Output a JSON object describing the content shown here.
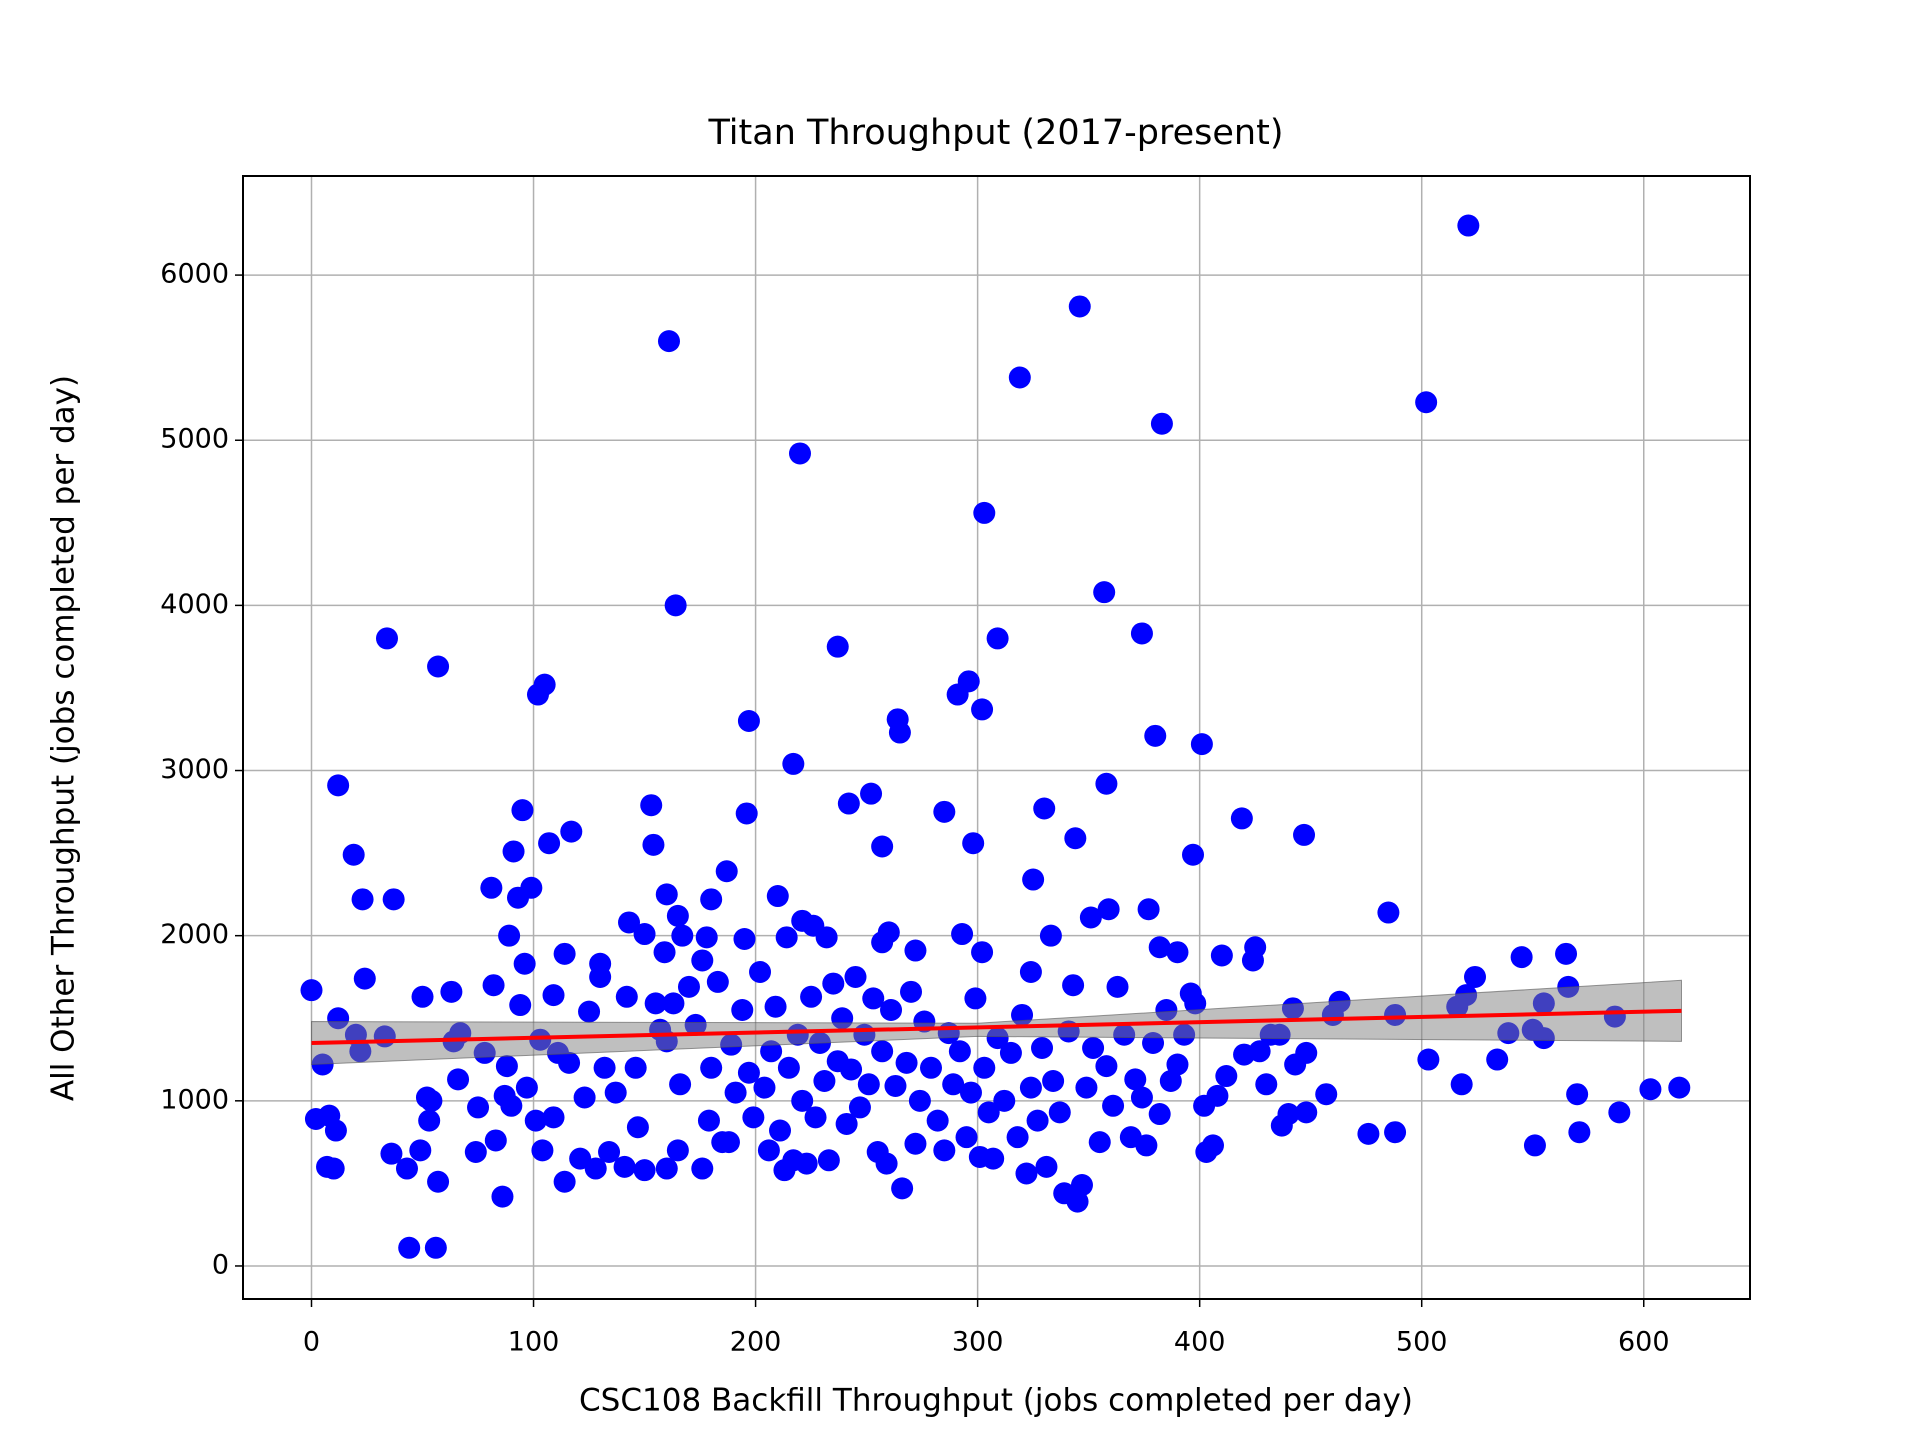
{
  "chart_data": {
    "type": "scatter",
    "title": "Titan Throughput (2017-present)",
    "xlabel": "CSC108 Backfill Throughput (jobs completed per day)",
    "ylabel": "All Other Throughput (jobs completed per day)",
    "color": "#0000ff",
    "x": [
      521,
      346,
      161,
      319,
      502,
      383,
      220,
      303,
      164,
      357,
      34,
      237,
      309,
      374,
      57,
      105,
      102,
      296,
      291,
      302,
      197,
      264,
      265,
      380,
      401,
      217,
      12,
      358,
      252,
      242,
      330,
      153,
      285,
      95,
      196,
      419,
      117,
      447,
      344,
      298,
      154,
      107,
      257,
      91,
      19,
      397,
      187,
      325,
      81,
      99,
      160,
      210,
      23,
      37,
      93,
      180,
      377,
      359,
      485,
      165,
      351,
      221,
      143,
      226,
      150,
      89,
      260,
      293,
      167,
      333,
      195,
      232,
      178,
      214,
      257,
      159,
      114,
      382,
      390,
      425,
      410,
      565,
      545,
      424,
      130,
      272,
      302,
      324,
      96,
      24,
      0,
      63,
      82,
      50,
      109,
      463,
      555,
      566,
      524,
      520,
      587,
      442,
      488,
      516,
      539,
      550,
      534,
      503,
      518,
      555,
      570,
      589,
      603,
      616,
      571,
      551,
      488,
      476,
      457,
      448,
      437,
      440,
      406,
      403,
      402,
      408,
      430,
      436,
      448,
      2,
      5,
      8,
      11,
      7,
      10,
      12,
      22,
      20,
      33,
      36,
      43,
      44,
      56,
      49,
      52,
      53,
      54,
      57,
      64,
      66,
      67,
      74,
      75,
      78,
      83,
      86,
      87,
      88,
      90,
      94,
      97,
      101,
      103,
      104,
      109,
      111,
      114,
      116,
      121,
      123,
      125,
      128,
      130,
      132,
      134,
      137,
      141,
      142,
      146,
      147,
      150,
      155,
      157,
      160,
      160,
      163,
      165,
      166,
      170,
      173,
      176,
      176,
      179,
      180,
      183,
      185,
      188,
      189,
      191,
      194,
      197,
      199,
      202,
      204,
      206,
      207,
      209,
      211,
      213,
      215,
      217,
      219,
      221,
      223,
      225,
      227,
      229,
      231,
      233,
      235,
      237,
      239,
      241,
      243,
      245,
      247,
      249,
      251,
      253,
      255,
      257,
      259,
      261,
      263,
      266,
      268,
      270,
      272,
      274,
      276,
      279,
      282,
      285,
      287,
      289,
      292,
      295,
      297,
      299,
      301,
      303,
      305,
      307,
      309,
      312,
      315,
      318,
      320,
      322,
      324,
      327,
      329,
      331,
      334,
      337,
      339,
      341,
      343,
      345,
      347,
      349,
      352,
      355,
      358,
      361,
      363,
      366,
      369,
      371,
      374,
      376,
      379,
      382,
      385,
      387,
      390,
      393,
      396,
      398,
      412,
      420,
      427,
      460,
      432,
      443
    ],
    "values": [
      6300,
      5810,
      5600,
      5380,
      5230,
      5100,
      4920,
      4560,
      4000,
      4080,
      3800,
      3750,
      3800,
      3830,
      3630,
      3520,
      3460,
      3540,
      3460,
      3370,
      3300,
      3310,
      3230,
      3210,
      3160,
      3040,
      2910,
      2920,
      2860,
      2800,
      2770,
      2790,
      2750,
      2760,
      2740,
      2710,
      2630,
      2610,
      2590,
      2560,
      2550,
      2560,
      2540,
      2510,
      2490,
      2490,
      2390,
      2340,
      2290,
      2290,
      2250,
      2240,
      2220,
      2220,
      2230,
      2220,
      2160,
      2160,
      2140,
      2120,
      2110,
      2090,
      2080,
      2060,
      2010,
      2000,
      2020,
      2010,
      2000,
      2000,
      1980,
      1990,
      1990,
      1990,
      1960,
      1900,
      1890,
      1930,
      1900,
      1930,
      1880,
      1890,
      1870,
      1850,
      1830,
      1910,
      1900,
      1780,
      1830,
      1740,
      1670,
      1660,
      1700,
      1630,
      1640,
      1600,
      1590,
      1690,
      1750,
      1640,
      1510,
      1560,
      1520,
      1570,
      1410,
      1430,
      1250,
      1250,
      1100,
      1380,
      1040,
      930,
      1070,
      1080,
      810,
      730,
      810,
      800,
      1040,
      930,
      850,
      920,
      730,
      690,
      970,
      1030,
      1100,
      1400,
      1290,
      890,
      1220,
      910,
      820,
      600,
      590,
      1500,
      1300,
      1400,
      1390,
      680,
      590,
      110,
      110,
      700,
      1020,
      880,
      1000,
      510,
      1360,
      1130,
      1410,
      690,
      960,
      1290,
      760,
      420,
      1030,
      1210,
      970,
      1580,
      1080,
      880,
      1370,
      700,
      900,
      1290,
      510,
      1230,
      650,
      1020,
      1540,
      590,
      1750,
      1200,
      690,
      1050,
      600,
      1630,
      1200,
      840,
      580,
      1590,
      1430,
      590,
      1360,
      1590,
      700,
      1100,
      1690,
      1460,
      590,
      1850,
      880,
      1200,
      1720,
      750,
      750,
      1340,
      1050,
      1550,
      1170,
      900,
      1780,
      1080,
      700,
      1300,
      1570,
      820,
      580,
      1200,
      640,
      1400,
      1000,
      620,
      1630,
      900,
      1350,
      1120,
      640,
      1710,
      1240,
      1500,
      860,
      1190,
      1750,
      960,
      1400,
      1100,
      1620,
      690,
      1300,
      620,
      1550,
      1090,
      470,
      1230,
      1660,
      740,
      1000,
      1480,
      1200,
      880,
      700,
      1410,
      1100,
      1300,
      780,
      1050,
      1620,
      660,
      1200,
      930,
      650,
      1380,
      1000,
      1290,
      780,
      1520,
      560,
      1080,
      880,
      1320,
      600,
      1120,
      930,
      440,
      1420,
      1700,
      390,
      490,
      1080,
      1320,
      750,
      1210,
      970,
      1690,
      1400,
      780,
      1130,
      1020,
      730,
      1350,
      920,
      1550,
      1120,
      1220,
      1400,
      1650,
      1590,
      1150,
      1280,
      1300,
      1520,
      1400,
      1220
    ],
    "fit": {
      "color": "#ff0000",
      "x": [
        0,
        617
      ],
      "values": [
        1350,
        1545
      ]
    },
    "band": {
      "color": "#808080",
      "x": [
        0,
        300,
        617
      ],
      "lower": [
        1220,
        1390,
        1360
      ],
      "upper": [
        1480,
        1470,
        1730
      ]
    },
    "xlim": [
      -30.85,
      647.85
    ],
    "ylim": [
      -200,
      6600
    ],
    "xticks": [
      0,
      100,
      200,
      300,
      400,
      500,
      600
    ],
    "yticks": [
      0,
      1000,
      2000,
      3000,
      4000,
      5000,
      6000
    ],
    "grid": true
  }
}
